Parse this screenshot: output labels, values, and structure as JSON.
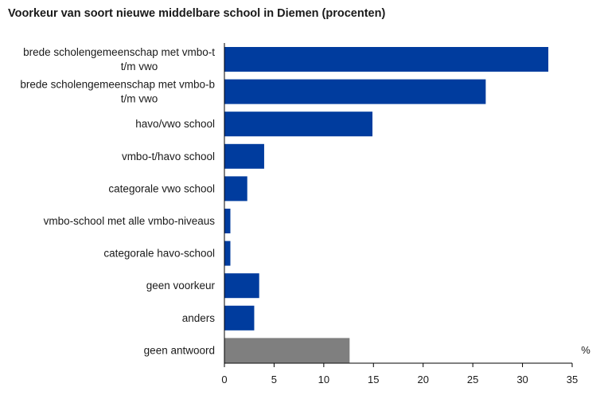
{
  "chart_data": {
    "type": "bar",
    "orientation": "horizontal",
    "title": "Voorkeur van soort nieuwe middelbare school in Diemen (procenten)",
    "categories": [
      [
        "brede scholengemeenschap met vmbo-t",
        "t/m vwo"
      ],
      [
        "brede scholengemeenschap met vmbo-b",
        "t/m vwo"
      ],
      [
        "havo/vwo school"
      ],
      [
        "vmbo-t/havo school"
      ],
      [
        "categorale vwo school"
      ],
      [
        "vmbo-school met alle vmbo-niveaus"
      ],
      [
        "categorale havo-school"
      ],
      [
        "geen voorkeur"
      ],
      [
        "anders"
      ],
      [
        "geen antwoord"
      ]
    ],
    "values": [
      32.6,
      26.3,
      14.9,
      4.0,
      2.3,
      0.6,
      0.6,
      3.5,
      3.0,
      12.6
    ],
    "bar_colors": [
      "#003c9e",
      "#003c9e",
      "#003c9e",
      "#003c9e",
      "#003c9e",
      "#003c9e",
      "#003c9e",
      "#003c9e",
      "#003c9e",
      "#7f7f7f"
    ],
    "xlim": [
      0,
      35
    ],
    "xticks": [
      0,
      5,
      10,
      15,
      20,
      25,
      30,
      35
    ],
    "unit": "%",
    "grid": false
  }
}
